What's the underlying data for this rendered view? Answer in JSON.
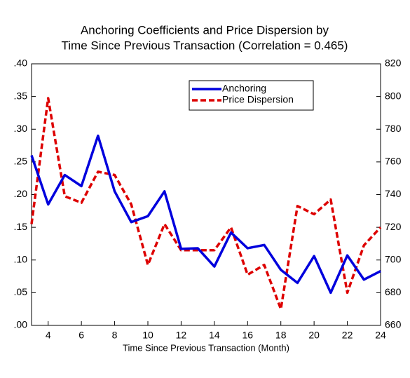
{
  "chart_data": {
    "type": "line",
    "title": [
      "Anchoring Coefficients and Price Dispersion by",
      "Time Since Previous Transaction (Correlation = 0.465)"
    ],
    "x_label": "Time Since Previous Transaction (Month)",
    "x": [
      3,
      4,
      5,
      6,
      7,
      8,
      9,
      10,
      11,
      12,
      13,
      14,
      15,
      16,
      17,
      18,
      19,
      20,
      21,
      22,
      23,
      24
    ],
    "series": [
      {
        "name": "Anchoring",
        "color": "#0000dd",
        "axis": "y",
        "dash": false,
        "values": [
          0.26,
          0.185,
          0.23,
          0.213,
          0.29,
          0.205,
          0.158,
          0.167,
          0.205,
          0.117,
          0.118,
          0.09,
          0.142,
          0.118,
          0.123,
          0.085,
          0.065,
          0.106,
          0.05,
          0.107,
          0.07,
          0.083
        ]
      },
      {
        "name": "Price Dispersion",
        "color": "#dd0000",
        "axis": "y2",
        "dash": true,
        "values": [
          722,
          799,
          739,
          735,
          754,
          752,
          734,
          697,
          722,
          706,
          706,
          706,
          720,
          691,
          697,
          670,
          733,
          728,
          737,
          680,
          709,
          720
        ]
      }
    ],
    "xlim": [
      3,
      24
    ],
    "xticks": [
      4,
      6,
      8,
      10,
      12,
      14,
      16,
      18,
      20,
      22,
      24
    ],
    "ylim": [
      0,
      0.4
    ],
    "yticks": [
      {
        "value": 0,
        "label": ".00"
      },
      {
        "value": 0.05,
        "label": ".05"
      },
      {
        "value": 0.1,
        "label": ".10"
      },
      {
        "value": 0.15,
        "label": ".15"
      },
      {
        "value": 0.2,
        "label": ".20"
      },
      {
        "value": 0.25,
        "label": ".25"
      },
      {
        "value": 0.3,
        "label": ".30"
      },
      {
        "value": 0.35,
        "label": ".35"
      },
      {
        "value": 0.4,
        "label": ".40"
      }
    ],
    "y2lim": [
      660,
      820
    ],
    "y2ticks": [
      660,
      680,
      700,
      720,
      740,
      760,
      780,
      800,
      820
    ],
    "legend": "upper right"
  }
}
